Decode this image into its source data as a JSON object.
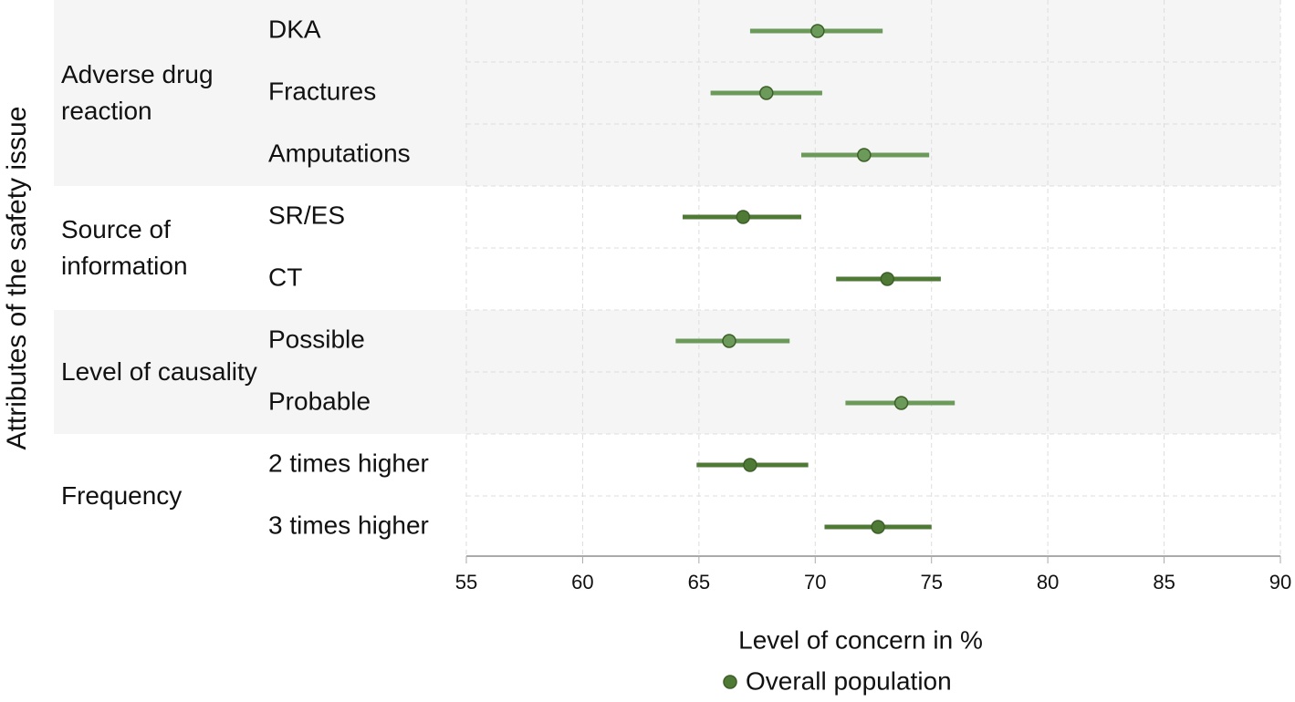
{
  "chart_data": {
    "type": "forest",
    "y_label": "Attributes of the safety issue",
    "x_label": "Level of concern in %",
    "groups": [
      {
        "label": "Adverse drug reaction",
        "categories": [
          "DKA",
          "Fractures",
          "Amputations"
        ]
      },
      {
        "label": "Source of information",
        "categories": [
          "SR/ES",
          "CT"
        ]
      },
      {
        "label": "Level of causality",
        "categories": [
          "Possible",
          "Probable"
        ]
      },
      {
        "label": "Frequency",
        "categories": [
          "2 times higher",
          "3 times higher"
        ]
      }
    ],
    "series": [
      {
        "name": "Overall population",
        "color": "#4e7a35",
        "colors": [
          "#6b9a5a",
          "#6b9a5a",
          "#6b9a5a",
          "#4e7a35",
          "#4e7a35",
          "#6b9a5a",
          "#6b9a5a",
          "#4e7a35",
          "#4e7a35"
        ],
        "values": [
          70.1,
          67.9,
          72.1,
          66.9,
          73.1,
          66.3,
          73.7,
          67.2,
          72.7
        ],
        "lower": [
          67.2,
          65.5,
          69.4,
          64.3,
          70.9,
          64.0,
          71.3,
          64.9,
          70.4
        ],
        "upper": [
          72.9,
          70.3,
          74.9,
          69.4,
          75.4,
          68.9,
          76.0,
          69.7,
          75.0
        ]
      }
    ],
    "xlim": [
      55,
      90
    ],
    "xticks": [
      55,
      60,
      65,
      70,
      75,
      80,
      85,
      90
    ],
    "grid": true,
    "legend": "bottom"
  }
}
